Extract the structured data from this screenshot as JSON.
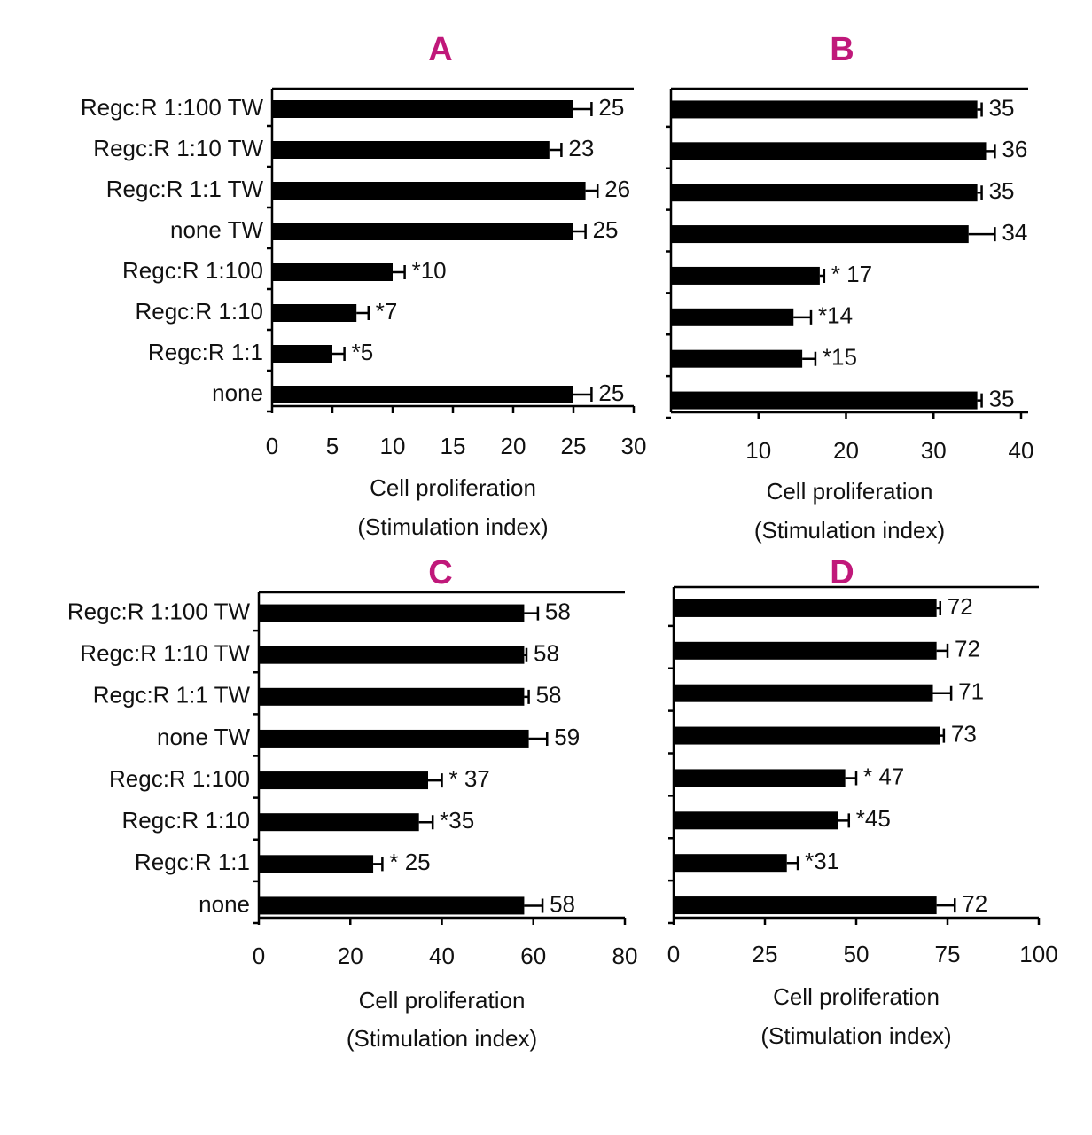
{
  "chart_data": [
    {
      "type": "bar",
      "title": "A",
      "categories": [
        "Regc:R 1:100 TW",
        "Regc:R 1:10 TW",
        "Regc:R 1:1 TW",
        "none TW",
        "Regc:R 1:100",
        "Regc:R 1:10",
        "Regc:R 1:1",
        "none"
      ],
      "values": [
        25,
        23,
        26,
        25,
        10,
        7,
        5,
        25
      ],
      "errors": [
        1.5,
        1,
        1,
        1,
        1,
        1,
        1,
        1.5
      ],
      "value_labels": [
        "25",
        "23",
        "26",
        "25",
        "*10",
        "*7",
        "*5",
        "25"
      ],
      "color": "#000000",
      "xlim": [
        0,
        30
      ],
      "xticks": [
        0,
        5,
        10,
        15,
        20,
        25,
        30
      ],
      "xlabel": [
        "Cell proliferation",
        "(Stimulation index)"
      ]
    },
    {
      "type": "bar",
      "title": "B",
      "values": [
        35,
        36,
        35,
        34,
        17,
        14,
        15,
        35
      ],
      "errors": [
        0.5,
        1,
        0.5,
        3,
        0.5,
        2,
        1.5,
        0.5
      ],
      "value_labels": [
        "35",
        "36",
        "35",
        "34",
        "* 17",
        "*14",
        "*15",
        "35"
      ],
      "color": "#000000",
      "xlim": [
        0,
        40
      ],
      "xticks": [
        10,
        20,
        30,
        40
      ],
      "xlabel": [
        "Cell proliferation",
        "(Stimulation index)"
      ]
    },
    {
      "type": "bar",
      "title": "C",
      "categories": [
        "Regc:R 1:100 TW",
        "Regc:R 1:10 TW",
        "Regc:R 1:1 TW",
        "none TW",
        "Regc:R 1:100",
        "Regc:R 1:10",
        "Regc:R 1:1",
        "none"
      ],
      "values": [
        58,
        58,
        58,
        59,
        37,
        35,
        25,
        58
      ],
      "errors": [
        3,
        0.5,
        1,
        4,
        3,
        3,
        2,
        4
      ],
      "value_labels": [
        "58",
        "58",
        "58",
        "59",
        "* 37",
        "*35",
        "* 25",
        "58"
      ],
      "color": "#000000",
      "xlim": [
        0,
        80
      ],
      "xticks": [
        0,
        20,
        40,
        60,
        80
      ],
      "xlabel": [
        "Cell proliferation",
        "(Stimulation index)"
      ]
    },
    {
      "type": "bar",
      "title": "D",
      "values": [
        72,
        72,
        71,
        73,
        47,
        45,
        31,
        72
      ],
      "errors": [
        1,
        3,
        5,
        1,
        3,
        3,
        3,
        5
      ],
      "value_labels": [
        "72",
        "72",
        "71",
        "73",
        "* 47",
        "*45",
        "*31",
        "72"
      ],
      "color": "#000000",
      "xlim": [
        0,
        100
      ],
      "xticks": [
        0,
        25,
        50,
        75,
        100
      ],
      "xlabel": [
        "Cell proliferation",
        "(Stimulation index)"
      ]
    }
  ]
}
